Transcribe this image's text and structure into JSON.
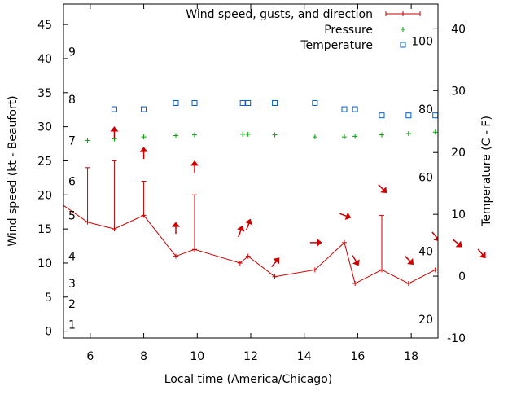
{
  "chart_data": {
    "type": "line",
    "xlabel": "Local time (America/Chicago)",
    "ylabel": "Wind speed (kt - Beaufort)",
    "y2label": "Temperature (C - F)",
    "xlim": [
      5,
      19
    ],
    "ylim": [
      -1,
      48
    ],
    "y2lim": [
      -10,
      44
    ],
    "x_ticks": [
      6,
      8,
      10,
      12,
      14,
      16,
      18
    ],
    "y_ticks": [
      0,
      5,
      10,
      15,
      20,
      25,
      30,
      35,
      40,
      45
    ],
    "y2_ticks": [
      -10,
      0,
      10,
      20,
      30,
      40
    ],
    "beaufort_labels": [
      {
        "label": "1",
        "y": 1
      },
      {
        "label": "2",
        "y": 4
      },
      {
        "label": "3",
        "y": 7
      },
      {
        "label": "4",
        "y": 11
      },
      {
        "label": "5",
        "y": 17
      },
      {
        "label": "6",
        "y": 22
      },
      {
        "label": "7",
        "y": 28
      },
      {
        "label": "8",
        "y": 34
      },
      {
        "label": "9",
        "y": 41
      }
    ],
    "fahrenheit_labels": [
      {
        "label": "20",
        "y": -7
      },
      {
        "label": "40",
        "y": 4
      },
      {
        "label": "60",
        "y": 16
      },
      {
        "label": "80",
        "y": 27
      },
      {
        "label": "100",
        "y": 38
      }
    ],
    "legend": [
      {
        "label": "Wind speed, gusts, and direction",
        "color": "#cc0000",
        "marker": "line-plus"
      },
      {
        "label": "Pressure",
        "color": "#00a000",
        "marker": "plus"
      },
      {
        "label": "Temperature",
        "color": "#0060d0",
        "marker": "square"
      }
    ],
    "series": [
      {
        "name": "Wind speed, gusts, and direction",
        "color": "#cc0000",
        "x": [
          4.8,
          5.9,
          6.9,
          8.0,
          9.2,
          9.9,
          11.6,
          11.9,
          12.9,
          14.4,
          15.5,
          15.9,
          16.9,
          17.9,
          18.9
        ],
        "y": [
          19,
          16,
          15,
          17,
          11,
          12,
          10,
          11,
          8,
          9,
          13,
          7,
          9,
          7,
          9
        ]
      },
      {
        "name": "Pressure",
        "color": "#00a000",
        "x": [
          5.9,
          6.9,
          8.0,
          9.2,
          9.9,
          11.7,
          11.9,
          12.9,
          14.4,
          15.5,
          15.9,
          16.9,
          17.9,
          18.9
        ],
        "y": [
          28,
          28.2,
          28.5,
          28.7,
          28.8,
          28.9,
          28.9,
          28.8,
          28.5,
          28.5,
          28.6,
          28.8,
          29.0,
          29.2
        ]
      },
      {
        "name": "Temperature",
        "color": "#0060d0",
        "x": [
          6.9,
          8.0,
          9.2,
          9.9,
          11.7,
          11.9,
          12.9,
          14.4,
          15.5,
          15.9,
          16.9,
          17.9,
          18.9
        ],
        "y": [
          27,
          27,
          28,
          28,
          28,
          28,
          28,
          28,
          27,
          27,
          26,
          26,
          26
        ]
      }
    ],
    "gusts": [
      {
        "x": 5.9,
        "speed": 16,
        "gust": 24
      },
      {
        "x": 6.9,
        "speed": 15,
        "gust": 25
      },
      {
        "x": 8.0,
        "speed": 17,
        "gust": 22
      },
      {
        "x": 9.9,
        "speed": 12,
        "gust": 20
      },
      {
        "x": 16.9,
        "speed": 9,
        "gust": 17
      }
    ],
    "wind_direction_arrows": [
      {
        "x": 6.9,
        "y": 29,
        "angle_deg": 0
      },
      {
        "x": 8.0,
        "y": 26,
        "angle_deg": 0
      },
      {
        "x": 9.2,
        "y": 15,
        "angle_deg": 0
      },
      {
        "x": 9.9,
        "y": 24,
        "angle_deg": 0
      },
      {
        "x": 11.6,
        "y": 14.5,
        "angle_deg": 20
      },
      {
        "x": 11.9,
        "y": 15.5,
        "angle_deg": 20
      },
      {
        "x": 12.9,
        "y": 10,
        "angle_deg": 40
      },
      {
        "x": 14.4,
        "y": 13,
        "angle_deg": 90
      },
      {
        "x": 15.5,
        "y": 17,
        "angle_deg": 110
      },
      {
        "x": 15.9,
        "y": 10.5,
        "angle_deg": 150
      },
      {
        "x": 16.9,
        "y": 21,
        "angle_deg": 135
      },
      {
        "x": 17.9,
        "y": 10.5,
        "angle_deg": 135
      },
      {
        "x": 18.9,
        "y": 14,
        "angle_deg": 140
      },
      {
        "x": 19.9,
        "y": 13,
        "angle_deg": 130
      },
      {
        "x": 20.9,
        "y": 11.5,
        "angle_deg": 140
      }
    ]
  }
}
